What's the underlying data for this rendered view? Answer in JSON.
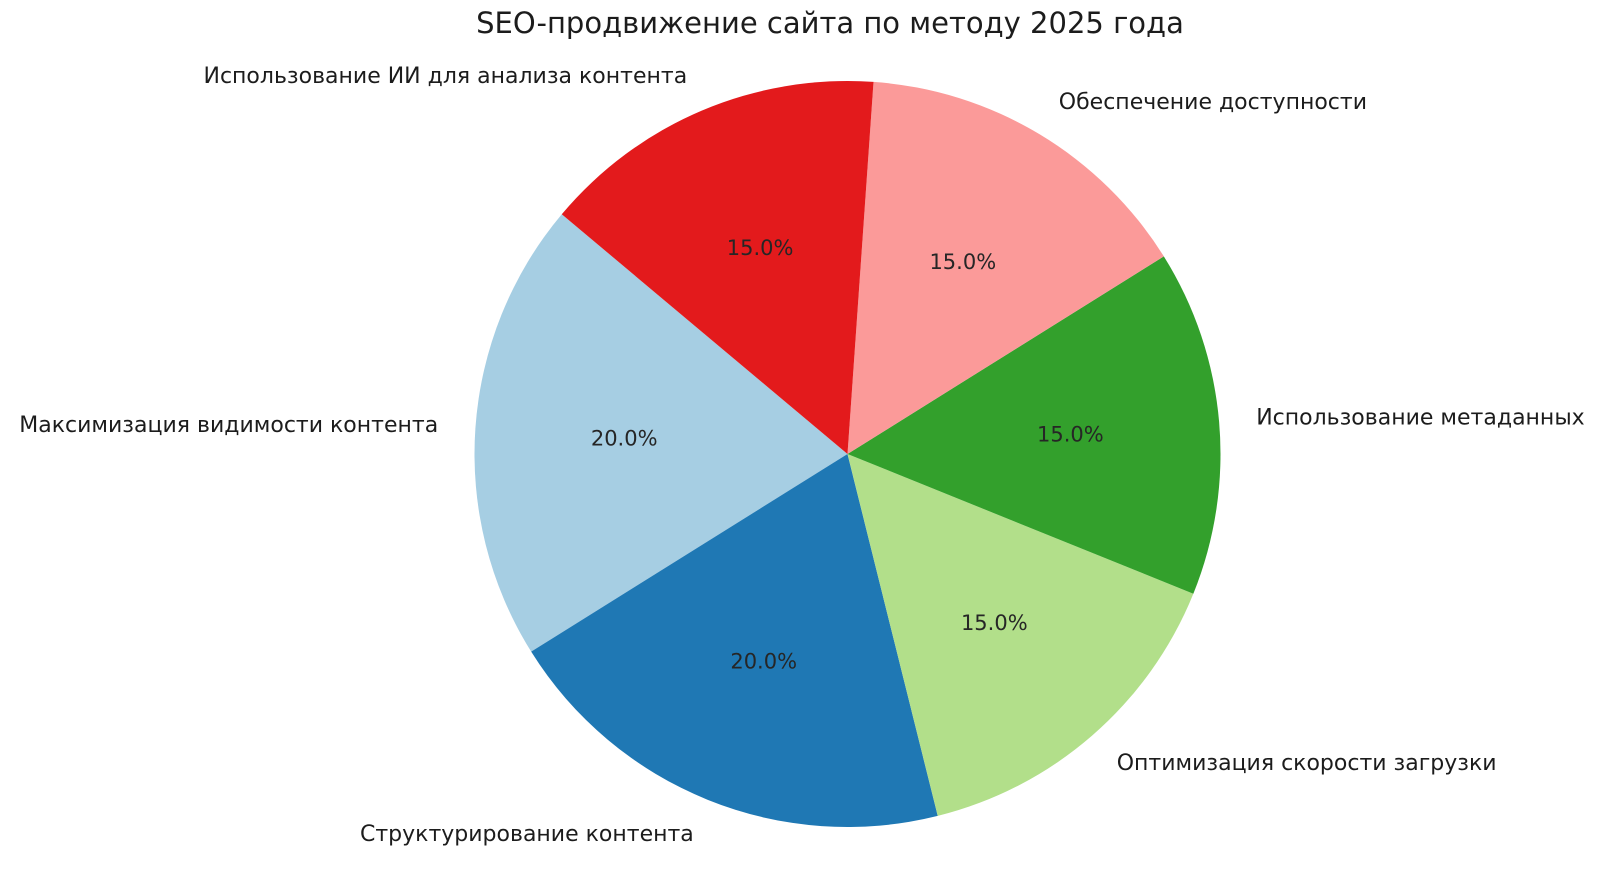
{
  "chart_data": {
    "type": "pie",
    "title": "SEO-продвижение сайта по методу 2025 года",
    "legend": "none",
    "background": "#ffffff",
    "start_angle": 140,
    "counterclock": true,
    "label_distance": 1.1,
    "pct_distance": 0.6,
    "slices": [
      {
        "label": "Максимизация видимости контента",
        "value": 20.0,
        "pct_label": "20.0%",
        "color": "#a6cee3"
      },
      {
        "label": "Структурирование контента",
        "value": 20.0,
        "pct_label": "20.0%",
        "color": "#1f78b4"
      },
      {
        "label": "Оптимизация скорости загрузки",
        "value": 15.0,
        "pct_label": "15.0%",
        "color": "#b2df8a"
      },
      {
        "label": "Использование метаданных",
        "value": 15.0,
        "pct_label": "15.0%",
        "color": "#33a02c"
      },
      {
        "label": "Обеспечение доступности",
        "value": 15.0,
        "pct_label": "15.0%",
        "color": "#fb9a99"
      },
      {
        "label": "Использование ИИ для анализа контента",
        "value": 15.0,
        "pct_label": "15.0%",
        "color": "#e31a1c"
      }
    ]
  }
}
